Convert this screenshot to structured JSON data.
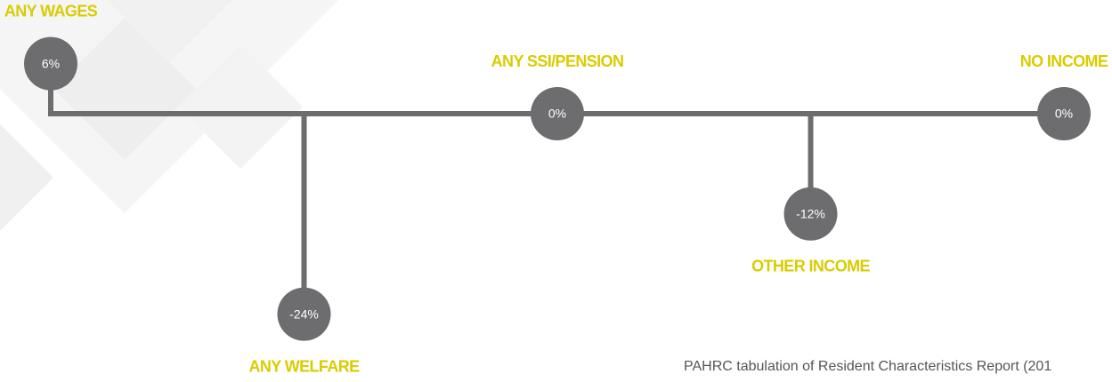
{
  "chart_data": {
    "type": "timeline",
    "categories": [
      "ANY WAGES",
      "ANY WELFARE",
      "ANY SSI/PENSION",
      "OTHER INCOME",
      "NO INCOME"
    ],
    "values": [
      6,
      -24,
      0,
      -12,
      0
    ],
    "value_labels": [
      "6%",
      "-24%",
      "0%",
      "-12%",
      "0%"
    ],
    "color": "#6d6d6f",
    "label_color": "#d9cc00",
    "source": "PAHRC tabulation of Resident Characteristics Report (201"
  }
}
